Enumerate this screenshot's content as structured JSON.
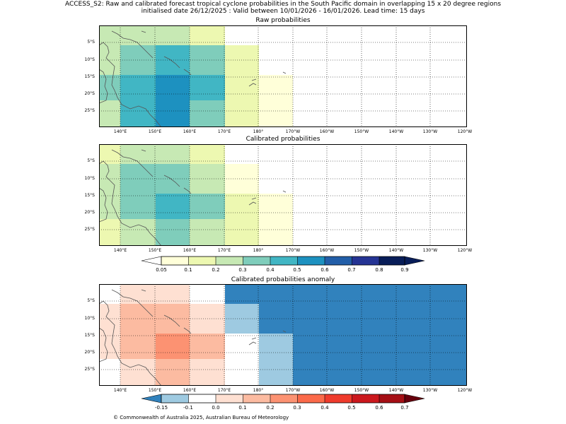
{
  "header": {
    "line1": "ACCESS_S2: Raw and calibrated forecast tropical cyclone probabilities in the South Pacific domain in overlapping 15 x 20 degree regions",
    "line2": "initialised date 26/12/2025 :  Valid between 10/01/2026 - 16/01/2026. Lead time: 15 days"
  },
  "panels": {
    "raw": {
      "title": "Raw probabilities"
    },
    "calibrated": {
      "title": "Calibrated probabilities"
    },
    "anomaly": {
      "title": "Calibrated probabilities anomaly"
    }
  },
  "lat_labels": [
    "5°S",
    "10°S",
    "15°S",
    "20°S",
    "25°S"
  ],
  "lon_labels": [
    "140°E",
    "150°E",
    "160°E",
    "170°E",
    "180°",
    "170°W",
    "160°W",
    "150°W",
    "140°W",
    "130°W",
    "120°W"
  ],
  "colorbar_prob": {
    "ticks": [
      "0.05",
      "0.1",
      "0.2",
      "0.3",
      "0.4",
      "0.5",
      "0.6",
      "0.7",
      "0.8",
      "0.9"
    ],
    "colors": [
      "#ffffd9",
      "#edf8b1",
      "#c7e9b4",
      "#7fcdbb",
      "#41b6c4",
      "#1d91c0",
      "#225ea8",
      "#253494",
      "#081d58"
    ]
  },
  "colorbar_anom": {
    "ticks": [
      "-0.15",
      "-0.1",
      "0.0",
      "0.1",
      "0.2",
      "0.3",
      "0.4",
      "0.5",
      "0.6",
      "0.7"
    ],
    "colors": [
      "#9ecae1",
      "#ffffff",
      "#fee0d2",
      "#fcbba1",
      "#fc9272",
      "#fb6a4a",
      "#ef3b2c",
      "#cb181d",
      "#a50f15"
    ],
    "under_color": "#3182bd",
    "over_color": "#67000d"
  },
  "footer": "© Commonwealth of Australia 2025, Australian Bureau of Meteorology"
}
